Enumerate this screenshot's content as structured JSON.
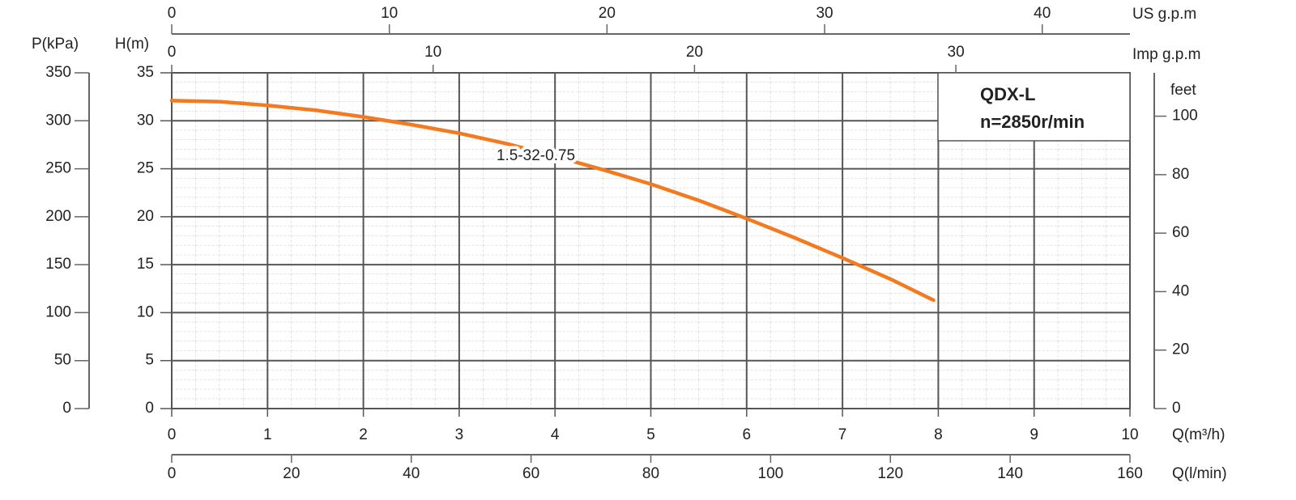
{
  "chart_data": {
    "type": "line",
    "title": "QDX-L",
    "subtitle": "n=2850r/min",
    "xlabel": "Q(m³/h)",
    "ylabel": "H(m)",
    "x": [
      0,
      0.5,
      1,
      1.5,
      2,
      2.5,
      3,
      3.5,
      4,
      4.5,
      5,
      5.5,
      6,
      6.5,
      7,
      7.5,
      7.95
    ],
    "series": [
      {
        "name": "1.5-32-0.75",
        "color": "#f47a20",
        "values": [
          32.1,
          32.0,
          31.6,
          31.1,
          30.4,
          29.6,
          28.7,
          27.6,
          26.3,
          24.9,
          23.4,
          21.7,
          19.8,
          17.8,
          15.7,
          13.5,
          11.3
        ]
      }
    ],
    "xlim": [
      0,
      10
    ],
    "xticks": [
      0,
      1,
      2,
      3,
      4,
      5,
      6,
      7,
      8,
      9,
      10
    ],
    "ylim": [
      0,
      35
    ],
    "yticks": [
      0,
      5,
      10,
      15,
      20,
      25,
      30,
      35
    ],
    "grid": true,
    "secondary_axes": [
      {
        "label": "P(kPa)",
        "side": "left",
        "lim": [
          0,
          350
        ],
        "ticks": [
          0,
          50,
          100,
          150,
          200,
          250,
          300,
          350
        ]
      },
      {
        "label": "feet",
        "side": "right",
        "lim": [
          0,
          114.83
        ],
        "ticks": [
          0,
          20,
          40,
          60,
          80,
          100
        ]
      },
      {
        "label": "US g.p.m",
        "side": "top",
        "lim": [
          0,
          44.03
        ],
        "ticks": [
          0,
          10,
          20,
          30,
          40
        ]
      },
      {
        "label": "Imp g.p.m",
        "side": "top",
        "lim": [
          0,
          36.66
        ],
        "ticks": [
          0,
          10,
          20,
          30
        ]
      },
      {
        "label": "Q(l/min)",
        "side": "bottom",
        "lim": [
          0,
          160
        ],
        "ticks": [
          0,
          20,
          40,
          60,
          80,
          100,
          120,
          140,
          160
        ]
      }
    ]
  }
}
